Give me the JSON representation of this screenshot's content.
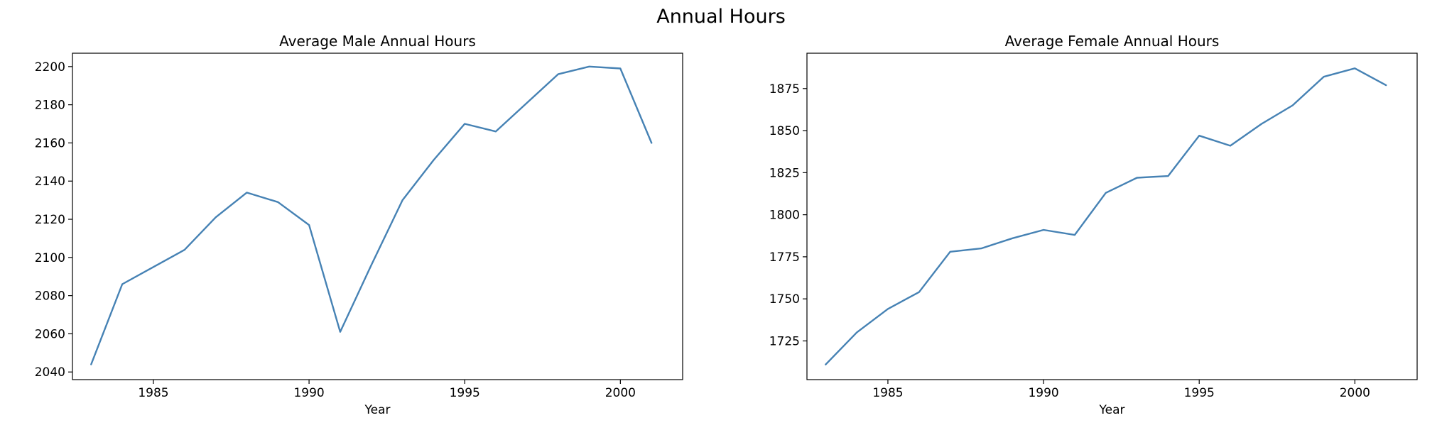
{
  "figure": {
    "title": "Annual Hours"
  },
  "chart_data": [
    {
      "type": "line",
      "title": "Average Male Annual Hours",
      "xlabel": "Year",
      "ylabel": "",
      "xlim": [
        1982.4,
        2002.0
      ],
      "ylim": [
        2036,
        2207
      ],
      "xticks": [
        1985,
        1990,
        1995,
        2000
      ],
      "yticks": [
        2040,
        2060,
        2080,
        2100,
        2120,
        2140,
        2160,
        2180,
        2200
      ],
      "grid": false,
      "series": [
        {
          "color": "#4682b4",
          "x": [
            1983,
            1984,
            1985,
            1986,
            1987,
            1988,
            1989,
            1990,
            1991,
            1992,
            1993,
            1994,
            1995,
            1996,
            1997,
            1998,
            1999,
            2000,
            2001
          ],
          "values": [
            2044,
            2086,
            2095,
            2104,
            2121,
            2134,
            2129,
            2117,
            2061,
            2096,
            2130,
            2151,
            2170,
            2166,
            2181,
            2196,
            2200,
            2199,
            2160
          ]
        }
      ]
    },
    {
      "type": "line",
      "title": "Average Female Annual Hours",
      "xlabel": "Year",
      "ylabel": "",
      "xlim": [
        1982.4,
        2002.0
      ],
      "ylim": [
        1702,
        1896
      ],
      "xticks": [
        1985,
        1990,
        1995,
        2000
      ],
      "yticks": [
        1725,
        1750,
        1775,
        1800,
        1825,
        1850,
        1875
      ],
      "grid": false,
      "series": [
        {
          "color": "#4682b4",
          "x": [
            1983,
            1984,
            1985,
            1986,
            1987,
            1988,
            1989,
            1990,
            1991,
            1992,
            1993,
            1994,
            1995,
            1996,
            1997,
            1998,
            1999,
            2000,
            2001
          ],
          "values": [
            1711,
            1730,
            1744,
            1754,
            1778,
            1780,
            1786,
            1791,
            1788,
            1813,
            1822,
            1823,
            1847,
            1841,
            1854,
            1865,
            1882,
            1887,
            1877
          ]
        }
      ]
    }
  ]
}
